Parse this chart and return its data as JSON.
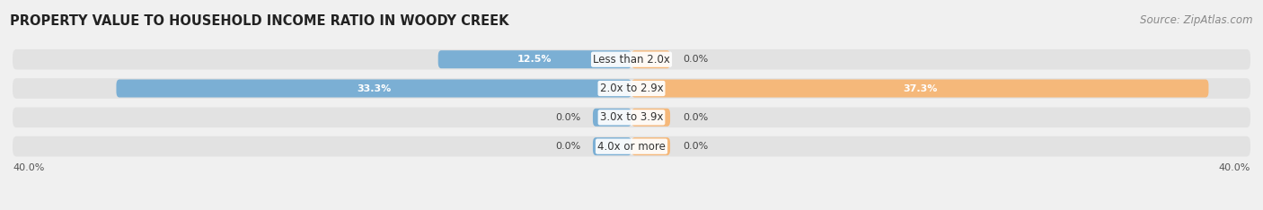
{
  "title": "PROPERTY VALUE TO HOUSEHOLD INCOME RATIO IN WOODY CREEK",
  "source": "Source: ZipAtlas.com",
  "categories": [
    "Less than 2.0x",
    "2.0x to 2.9x",
    "3.0x to 3.9x",
    "4.0x or more"
  ],
  "without_mortgage": [
    12.5,
    33.3,
    0.0,
    0.0
  ],
  "with_mortgage": [
    0.0,
    37.3,
    0.0,
    0.0
  ],
  "color_without": "#7bafd4",
  "color_with": "#f5b87a",
  "xlim": [
    -40,
    40
  ],
  "bg_color": "#f0f0f0",
  "bar_bg_color": "#e2e2e2",
  "bar_bg_color_alt": "#d8d8d8",
  "title_fontsize": 10.5,
  "source_fontsize": 8.5,
  "label_fontsize": 8.5,
  "value_fontsize": 8.0,
  "bar_height": 0.62,
  "zero_stub": 2.5
}
